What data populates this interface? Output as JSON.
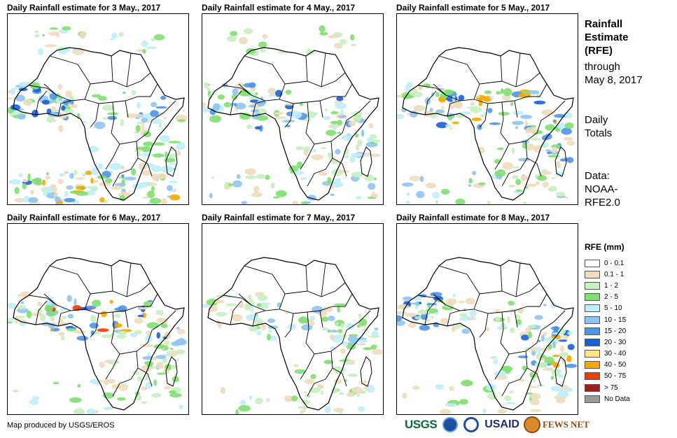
{
  "panels": [
    {
      "id": "p1",
      "title": "Daily Rainfall estimate for 3 May., 2017",
      "rain": [
        {
          "band": "s",
          "level": 3
        },
        {
          "band": "s",
          "level": 6
        },
        {
          "band": "e",
          "level": 2
        },
        {
          "band": "c",
          "level": 4
        },
        {
          "band": "se",
          "level": 2
        },
        {
          "band": "w",
          "level": 5
        },
        {
          "band": "n",
          "level": 2
        }
      ]
    },
    {
      "id": "p2",
      "title": "Daily Rainfall estimate for 4 May., 2017",
      "rain": [
        {
          "band": "s",
          "level": 3
        },
        {
          "band": "c",
          "level": 5
        },
        {
          "band": "e",
          "level": 3
        },
        {
          "band": "w",
          "level": 4
        },
        {
          "band": "n",
          "level": 1
        },
        {
          "band": "se",
          "level": 2
        }
      ]
    },
    {
      "id": "p3",
      "title": "Daily Rainfall estimate for 5 May., 2017",
      "rain": [
        {
          "band": "s",
          "level": 3
        },
        {
          "band": "c",
          "level": 6
        },
        {
          "band": "e",
          "level": 4
        },
        {
          "band": "w",
          "level": 3
        },
        {
          "band": "se",
          "level": 1
        }
      ]
    },
    {
      "id": "p4",
      "title": "Daily Rainfall estimate for 6 May., 2017",
      "rain": [
        {
          "band": "s",
          "level": 2
        },
        {
          "band": "c",
          "level": 7
        },
        {
          "band": "e",
          "level": 3
        },
        {
          "band": "w",
          "level": 3
        },
        {
          "band": "se",
          "level": 1
        }
      ]
    },
    {
      "id": "p5",
      "title": "Daily Rainfall estimate for 7 May., 2017",
      "rain": [
        {
          "band": "s",
          "level": 2
        },
        {
          "band": "c",
          "level": 3
        },
        {
          "band": "e",
          "level": 3
        },
        {
          "band": "w",
          "level": 2
        },
        {
          "band": "se",
          "level": 1
        }
      ]
    },
    {
      "id": "p6",
      "title": "Daily Rainfall estimate for 8 May., 2017",
      "rain": [
        {
          "band": "s",
          "level": 2
        },
        {
          "band": "c",
          "level": 3
        },
        {
          "band": "e",
          "level": 6
        },
        {
          "band": "w",
          "level": 5
        },
        {
          "band": "se",
          "level": 2
        }
      ]
    }
  ],
  "side": {
    "title_line1": "Rainfall",
    "title_line2": "Estimate",
    "title_line3": "(RFE)",
    "through_line1": "through",
    "through_line2": "May 8, 2017",
    "daily_line1": "Daily",
    "daily_line2": "Totals",
    "data_line1": "Data:",
    "data_line2": "NOAA-",
    "data_line3": "RFE2.0"
  },
  "legend": {
    "title": "RFE (mm)",
    "items": [
      {
        "label": "0 - 0.1",
        "color": "#ffffff"
      },
      {
        "label": "0.1 - 1",
        "color": "#eedcbd"
      },
      {
        "label": "1 - 2",
        "color": "#c8f0c0"
      },
      {
        "label": "2 - 5",
        "color": "#7fe070"
      },
      {
        "label": "5 - 10",
        "color": "#bfeefa"
      },
      {
        "label": "10 - 15",
        "color": "#8fc4f0"
      },
      {
        "label": "15 - 20",
        "color": "#4f94e8"
      },
      {
        "label": "20 - 30",
        "color": "#1a5fd8"
      },
      {
        "label": "30 - 40",
        "color": "#ffe680"
      },
      {
        "label": "40 - 50",
        "color": "#f7a800"
      },
      {
        "label": "50 - 75",
        "color": "#f03c00"
      },
      {
        "label": "> 75",
        "color": "#a01e1e"
      },
      {
        "label": "No Data",
        "color": "#9a9a9a"
      }
    ]
  },
  "credit": "Map produced by USGS/EROS",
  "logos": {
    "usgs": "USGS",
    "usaid": "USAID",
    "fews": "FEWS NET"
  }
}
